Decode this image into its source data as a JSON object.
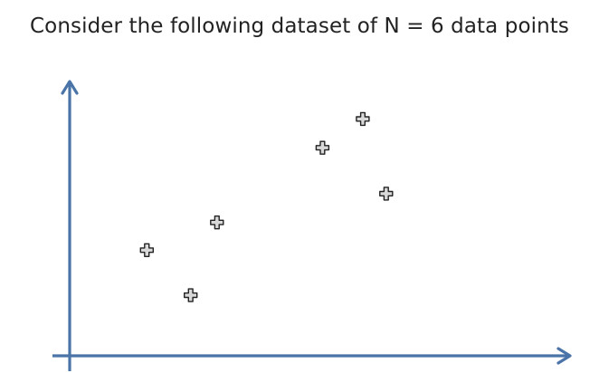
{
  "slide": {
    "title": "Consider the following dataset of N = 6 data points"
  },
  "colors": {
    "axis": "#4a74a8",
    "marker_fill": "#d9d9d9",
    "marker_stroke": "#222222",
    "title_text": "#222222",
    "background": "#ffffff"
  },
  "chart_data": {
    "type": "scatter",
    "title": "",
    "xlabel": "",
    "ylabel": "",
    "xlim": [
      0,
      100
    ],
    "ylim": [
      0,
      100
    ],
    "grid": false,
    "axis_ticks": false,
    "marker": "plus",
    "points": [
      {
        "x": 15.5,
        "y": 38.9
      },
      {
        "x": 24.3,
        "y": 22.3
      },
      {
        "x": 29.6,
        "y": 49.1
      },
      {
        "x": 50.8,
        "y": 76.6
      },
      {
        "x": 58.9,
        "y": 87.2
      },
      {
        "x": 63.6,
        "y": 59.7
      }
    ]
  }
}
